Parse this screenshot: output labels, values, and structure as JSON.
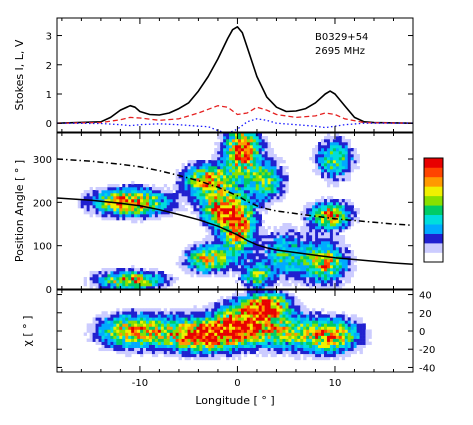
{
  "chart_data": {
    "type": "figure-stacked-panels",
    "title": "",
    "xlabel": "Longitude [ ° ]",
    "xlim": [
      -18.5,
      18
    ],
    "xticks": [
      -10,
      0,
      10
    ],
    "colors": {
      "total_intensity": "#000000",
      "linear_polarization": "#e52020",
      "circular_polarization": "#1a1aff"
    },
    "panels": [
      {
        "name": "profile",
        "type": "line",
        "ylabel": "Stokes I, L, V",
        "ylim": [
          -0.3,
          3.6
        ],
        "yticks": [
          0,
          1,
          2,
          3
        ],
        "annotation_lines": [
          "B0329+54",
          "2695 MHz"
        ],
        "series": [
          {
            "key": "I",
            "style": "solid",
            "x": [
              -18.5,
              -14,
              -13,
              -12,
              -11,
              -10.5,
              -10,
              -9,
              -8,
              -7,
              -6,
              -5,
              -4,
              -3,
              -2,
              -1,
              -0.5,
              0,
              0.5,
              1,
              2,
              3,
              4,
              5,
              6,
              7,
              8,
              9,
              9.5,
              10,
              11,
              12,
              13,
              14,
              18
            ],
            "y": [
              0,
              0.05,
              0.2,
              0.45,
              0.6,
              0.55,
              0.4,
              0.3,
              0.28,
              0.35,
              0.5,
              0.7,
              1.1,
              1.6,
              2.2,
              2.9,
              3.2,
              3.3,
              3.1,
              2.6,
              1.6,
              0.9,
              0.55,
              0.4,
              0.42,
              0.5,
              0.7,
              1.0,
              1.1,
              1.0,
              0.6,
              0.2,
              0.05,
              0.02,
              0
            ]
          },
          {
            "key": "L",
            "style": "dashed",
            "x": [
              -18.5,
              -14,
              -12,
              -11,
              -10,
              -8,
              -6,
              -4,
              -2,
              -1,
              0,
              1,
              2,
              3,
              4,
              6,
              8,
              9,
              10,
              11,
              13,
              18
            ],
            "y": [
              0,
              0.02,
              0.12,
              0.2,
              0.18,
              0.1,
              0.15,
              0.35,
              0.6,
              0.55,
              0.3,
              0.35,
              0.55,
              0.45,
              0.3,
              0.2,
              0.25,
              0.35,
              0.3,
              0.15,
              0.02,
              0
            ]
          },
          {
            "key": "V",
            "style": "dotted",
            "x": [
              -18.5,
              -14,
              -12,
              -11,
              -10,
              -8,
              -6,
              -4,
              -3,
              -2,
              -1,
              0,
              1,
              2,
              3,
              4,
              6,
              8,
              9,
              10,
              11,
              13,
              18
            ],
            "y": [
              0,
              -0.01,
              -0.05,
              -0.08,
              -0.05,
              -0.02,
              -0.05,
              -0.1,
              -0.12,
              -0.25,
              -0.35,
              -0.2,
              0.05,
              0.15,
              0.1,
              0.0,
              -0.05,
              -0.1,
              -0.15,
              -0.1,
              -0.05,
              0,
              0
            ]
          }
        ]
      },
      {
        "name": "position-angle",
        "type": "heatmap",
        "ylabel": "Position Angle [ ° ]",
        "ylim": [
          0,
          360
        ],
        "yticks": [
          0,
          100,
          200,
          300
        ],
        "colorbar": {
          "stops": [
            "#ffffff",
            "#ccccff",
            "#2020d0",
            "#00aaff",
            "#00dddd",
            "#00cc66",
            "#88e000",
            "#f0f000",
            "#ff9900",
            "#ff4400",
            "#e80000"
          ]
        },
        "model_curves": [
          {
            "style": "solid",
            "x": [
              -18.5,
              -15,
              -12,
              -10,
              -8,
              -6,
              -4,
              -2,
              0,
              1,
              2,
              3,
              4,
              6,
              8,
              10,
              12,
              14,
              16,
              18
            ],
            "y": [
              210,
              205,
              198,
              192,
              183,
              172,
              160,
              145,
              125,
              112,
              102,
              95,
              90,
              84,
              78,
              72,
              68,
              64,
              60,
              57
            ]
          },
          {
            "style": "dash-dot",
            "x": [
              -18.5,
              -15,
              -12,
              -10,
              -8,
              -6,
              -4,
              -2,
              0,
              1,
              2,
              3,
              4,
              6,
              8,
              10,
              12,
              14,
              16,
              18
            ],
            "y": [
              300,
              295,
              288,
              282,
              273,
              262,
              250,
              235,
              215,
              202,
              192,
              185,
              180,
              174,
              168,
              162,
              158,
              154,
              150,
              147
            ]
          }
        ],
        "blobs": [
          {
            "x": -11,
            "y": 200,
            "sx": 2.5,
            "sy": 20,
            "w": 1.0
          },
          {
            "x": -11,
            "y": 20,
            "sx": 2.2,
            "sy": 14,
            "w": 0.9
          },
          {
            "x": -3,
            "y": 250,
            "sx": 1.6,
            "sy": 25,
            "w": 0.9
          },
          {
            "x": -2,
            "y": 185,
            "sx": 1.2,
            "sy": 25,
            "w": 0.8
          },
          {
            "x": 0,
            "y": 150,
            "sx": 1.2,
            "sy": 45,
            "w": 1.0
          },
          {
            "x": 0.5,
            "y": 320,
            "sx": 1.2,
            "sy": 40,
            "w": 1.0
          },
          {
            "x": -3,
            "y": 70,
            "sx": 1.5,
            "sy": 20,
            "w": 0.8
          },
          {
            "x": 3,
            "y": 250,
            "sx": 1.2,
            "sy": 30,
            "w": 0.6
          },
          {
            "x": 5,
            "y": 80,
            "sx": 1.6,
            "sy": 35,
            "w": 0.5
          },
          {
            "x": 9.5,
            "y": 170,
            "sx": 1.4,
            "sy": 20,
            "w": 0.9
          },
          {
            "x": 9,
            "y": 60,
            "sx": 1.5,
            "sy": 30,
            "w": 0.8
          },
          {
            "x": 10,
            "y": 300,
            "sx": 1.2,
            "sy": 30,
            "w": 0.6
          },
          {
            "x": 2,
            "y": 30,
            "sx": 1.0,
            "sy": 20,
            "w": 0.6
          }
        ]
      },
      {
        "name": "ellipticity",
        "type": "heatmap",
        "ylabel": "χ [ ° ]",
        "ylim": [
          -45,
          45
        ],
        "yticks": [
          40,
          20,
          0,
          -20,
          -40
        ],
        "blobs": [
          {
            "x": -11,
            "y": 0,
            "sx": 2.2,
            "sy": 12,
            "w": 0.8
          },
          {
            "x": -3,
            "y": -5,
            "sx": 2.5,
            "sy": 12,
            "w": 1.0
          },
          {
            "x": 1,
            "y": 10,
            "sx": 2.2,
            "sy": 14,
            "w": 1.0
          },
          {
            "x": 3,
            "y": 30,
            "sx": 1.5,
            "sy": 8,
            "w": 0.9
          },
          {
            "x": 9.5,
            "y": -5,
            "sx": 2.0,
            "sy": 12,
            "w": 0.9
          },
          {
            "x": 5,
            "y": 0,
            "sx": 2.0,
            "sy": 14,
            "w": 0.5
          },
          {
            "x": -7,
            "y": 0,
            "sx": 2.0,
            "sy": 12,
            "w": 0.4
          }
        ]
      }
    ]
  }
}
